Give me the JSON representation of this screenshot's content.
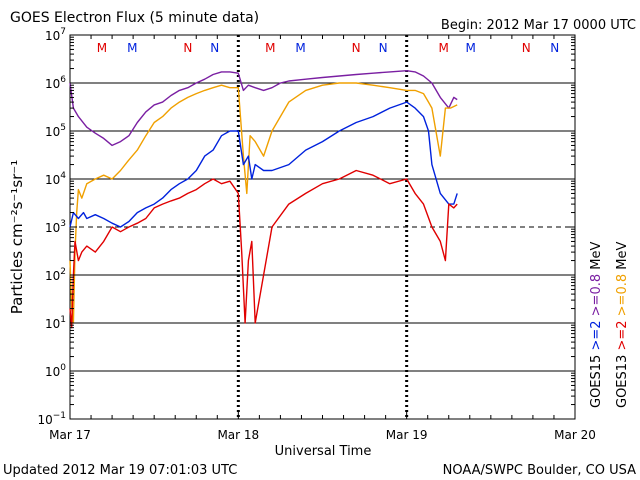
{
  "header": {
    "title": "GOES Electron Flux (5 minute data)",
    "begin": "Begin: 2012 Mar 17 0000 UTC"
  },
  "footer": {
    "updated": "Updated 2012 Mar 19 07:01:03 UTC",
    "credit": "NOAA/SWPC Boulder, CO USA"
  },
  "colors": {
    "goes15_08": "#7a1fa2",
    "goes15_2": "#0022dd",
    "goes13_08": "#f0a000",
    "goes13_2": "#e00000"
  },
  "chart_data": {
    "type": "line",
    "xlabel": "Universal Time",
    "ylabel": "Particles cm⁻²s⁻¹sr⁻¹",
    "x_unit": "days since 2012 Mar 17 0000 UTC",
    "xlim": [
      0,
      3
    ],
    "ylim": [
      0.1,
      10000000
    ],
    "yscale": "log",
    "x_ticks": [
      {
        "value": 0,
        "label": "Mar 17"
      },
      {
        "value": 1,
        "label": "Mar 18"
      },
      {
        "value": 2,
        "label": "Mar 19"
      },
      {
        "value": 3,
        "label": "Mar 20"
      }
    ],
    "y_ticks": [
      {
        "value": 0.1,
        "base": "10",
        "exp": "−1"
      },
      {
        "value": 1,
        "base": "10",
        "exp": "0"
      },
      {
        "value": 10,
        "base": "10",
        "exp": "1"
      },
      {
        "value": 100,
        "base": "10",
        "exp": "2"
      },
      {
        "value": 1000,
        "base": "10",
        "exp": "3"
      },
      {
        "value": 10000,
        "base": "10",
        "exp": "4"
      },
      {
        "value": 100000,
        "base": "10",
        "exp": "5"
      },
      {
        "value": 1000000,
        "base": "10",
        "exp": "6"
      },
      {
        "value": 10000000,
        "base": "10",
        "exp": "7"
      }
    ],
    "grid_y_solid": [
      1,
      10,
      100,
      10000,
      100000,
      1000000
    ],
    "grid_y_dashed": [
      1000
    ],
    "day_dividers": [
      1,
      2
    ],
    "mn_markers": [
      {
        "label": "M",
        "x": 0.19,
        "color": "#e00000"
      },
      {
        "label": "M",
        "x": 0.37,
        "color": "#0022dd"
      },
      {
        "label": "N",
        "x": 0.7,
        "color": "#e00000"
      },
      {
        "label": "N",
        "x": 0.86,
        "color": "#0022dd"
      },
      {
        "label": "M",
        "x": 1.19,
        "color": "#e00000"
      },
      {
        "label": "M",
        "x": 1.37,
        "color": "#0022dd"
      },
      {
        "label": "N",
        "x": 1.7,
        "color": "#e00000"
      },
      {
        "label": "N",
        "x": 1.86,
        "color": "#0022dd"
      },
      {
        "label": "M",
        "x": 2.22,
        "color": "#e00000"
      },
      {
        "label": "M",
        "x": 2.38,
        "color": "#0022dd"
      },
      {
        "label": "N",
        "x": 2.71,
        "color": "#e00000"
      },
      {
        "label": "N",
        "x": 2.88,
        "color": "#0022dd"
      }
    ],
    "legend": [
      {
        "sat": "GOES15",
        "energy": ">=2",
        "unit": "MeV",
        "color_a": "#0022dd",
        "color_b": "#7a1fa2",
        "energy_b": ">=0.8"
      },
      {
        "sat": "GOES13",
        "energy": ">=2",
        "unit": "MeV",
        "color_a": "#e00000",
        "color_b": "#f0a000",
        "energy_b": ">=0.8"
      }
    ],
    "series": [
      {
        "name": "GOES15 >=0.8 MeV",
        "color": "#7a1fa2",
        "x": [
          0.0,
          0.02,
          0.05,
          0.1,
          0.15,
          0.2,
          0.25,
          0.3,
          0.35,
          0.4,
          0.45,
          0.5,
          0.55,
          0.6,
          0.65,
          0.7,
          0.75,
          0.8,
          0.85,
          0.9,
          0.95,
          1.0,
          1.03,
          1.06,
          1.1,
          1.15,
          1.2,
          1.25,
          1.3,
          1.4,
          1.5,
          1.6,
          1.7,
          1.8,
          1.9,
          2.0,
          2.05,
          2.1,
          2.15,
          2.2,
          2.25,
          2.28,
          2.3
        ],
        "y": [
          1000000,
          300000,
          200000,
          120000,
          90000,
          70000,
          50000,
          60000,
          80000,
          150000,
          250000,
          350000,
          400000,
          550000,
          700000,
          800000,
          1000000,
          1200000,
          1500000,
          1700000,
          1700000,
          1600000,
          700000,
          900000,
          800000,
          700000,
          800000,
          1000000,
          1100000,
          1200000,
          1300000,
          1400000,
          1500000,
          1600000,
          1700000,
          1800000,
          1700000,
          1400000,
          1000000,
          500000,
          300000,
          500000,
          450000
        ]
      },
      {
        "name": "GOES13 >=0.8 MeV",
        "color": "#f0a000",
        "x": [
          0.0,
          0.01,
          0.02,
          0.03,
          0.04,
          0.05,
          0.07,
          0.1,
          0.15,
          0.2,
          0.25,
          0.3,
          0.35,
          0.4,
          0.45,
          0.5,
          0.55,
          0.6,
          0.65,
          0.7,
          0.75,
          0.8,
          0.85,
          0.9,
          0.95,
          1.0,
          1.03,
          1.05,
          1.07,
          1.1,
          1.15,
          1.2,
          1.3,
          1.4,
          1.5,
          1.6,
          1.7,
          1.8,
          1.9,
          2.0,
          2.05,
          2.1,
          2.13,
          2.15,
          2.2,
          2.23,
          2.26,
          2.3
        ],
        "y": [
          200,
          20,
          10,
          300,
          2000,
          6000,
          4000,
          8000,
          10000,
          12000,
          10000,
          15000,
          25000,
          40000,
          80000,
          150000,
          200000,
          300000,
          400000,
          500000,
          600000,
          700000,
          800000,
          900000,
          800000,
          800000,
          30000,
          5000,
          80000,
          60000,
          30000,
          100000,
          400000,
          700000,
          900000,
          1000000,
          1000000,
          900000,
          800000,
          700000,
          700000,
          600000,
          400000,
          300000,
          30000,
          300000,
          300000,
          350000
        ]
      },
      {
        "name": "GOES15 >=2 MeV",
        "color": "#0022dd",
        "x": [
          0.0,
          0.02,
          0.05,
          0.08,
          0.1,
          0.15,
          0.2,
          0.25,
          0.3,
          0.35,
          0.4,
          0.45,
          0.5,
          0.55,
          0.6,
          0.65,
          0.7,
          0.75,
          0.8,
          0.85,
          0.9,
          0.95,
          1.0,
          1.03,
          1.06,
          1.08,
          1.1,
          1.15,
          1.2,
          1.3,
          1.4,
          1.5,
          1.6,
          1.7,
          1.8,
          1.9,
          2.0,
          2.05,
          2.1,
          2.13,
          2.15,
          2.2,
          2.25,
          2.28,
          2.3
        ],
        "y": [
          1000,
          2000,
          1500,
          2000,
          1500,
          1800,
          1500,
          1200,
          1000,
          1300,
          2000,
          2500,
          3000,
          4000,
          6000,
          8000,
          10000,
          15000,
          30000,
          40000,
          80000,
          100000,
          100000,
          20000,
          30000,
          10000,
          20000,
          15000,
          15000,
          20000,
          40000,
          60000,
          100000,
          150000,
          200000,
          300000,
          400000,
          300000,
          200000,
          100000,
          20000,
          5000,
          3000,
          3000,
          5000
        ]
      },
      {
        "name": "GOES13 >=2 MeV",
        "color": "#e00000",
        "x": [
          0.0,
          0.01,
          0.02,
          0.03,
          0.05,
          0.07,
          0.1,
          0.15,
          0.2,
          0.25,
          0.3,
          0.35,
          0.4,
          0.45,
          0.5,
          0.55,
          0.6,
          0.65,
          0.7,
          0.75,
          0.8,
          0.85,
          0.9,
          0.95,
          1.0,
          1.02,
          1.04,
          1.06,
          1.08,
          1.1,
          1.15,
          1.2,
          1.3,
          1.4,
          1.5,
          1.6,
          1.7,
          1.8,
          1.9,
          2.0,
          2.05,
          2.1,
          2.15,
          2.2,
          2.23,
          2.25,
          2.28,
          2.3
        ],
        "y": [
          20,
          8,
          100,
          500,
          200,
          300,
          400,
          300,
          500,
          1000,
          800,
          1000,
          1200,
          1500,
          2500,
          3000,
          3500,
          4000,
          5000,
          6000,
          8000,
          10000,
          8000,
          9000,
          5000,
          300,
          10,
          200,
          500,
          10,
          100,
          1000,
          3000,
          5000,
          8000,
          10000,
          15000,
          12000,
          8000,
          10000,
          5000,
          3000,
          1000,
          500,
          200,
          3000,
          2500,
          3000
        ]
      }
    ]
  }
}
